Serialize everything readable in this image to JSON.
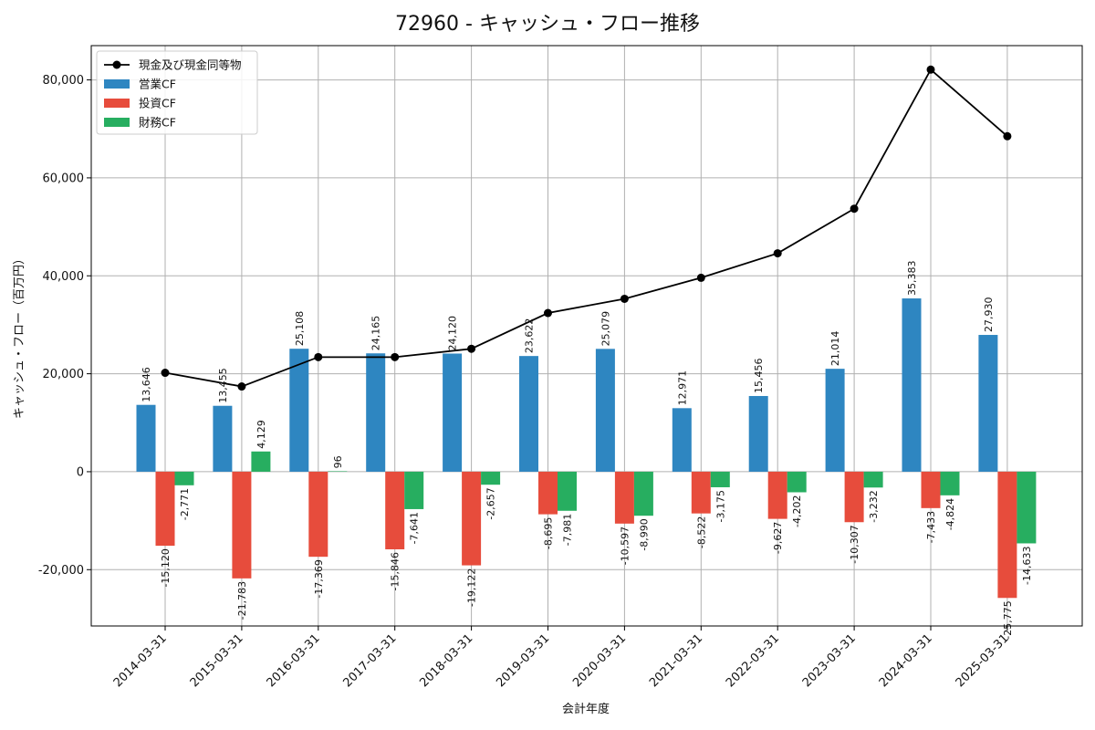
{
  "chart_data": {
    "type": "bar",
    "title": "72960 - キャッシュ・フロー推移",
    "xlabel": "会計年度",
    "ylabel": "キャッシュ・フロー（百万円）",
    "ylim": [
      -31500,
      87000
    ],
    "yticks": [
      -20000,
      0,
      20000,
      40000,
      60000,
      80000
    ],
    "ytick_labels": [
      "-20,000",
      "0",
      "20,000",
      "40,000",
      "60,000",
      "80,000"
    ],
    "grid": true,
    "legend_position": "top-left",
    "categories": [
      "2014-03-31",
      "2015-03-31",
      "2016-03-31",
      "2017-03-31",
      "2018-03-31",
      "2019-03-31",
      "2020-03-31",
      "2021-03-31",
      "2022-03-31",
      "2023-03-31",
      "2024-03-31",
      "2025-03-31"
    ],
    "series": [
      {
        "name": "営業CF",
        "type": "bar",
        "color": "#2e86c1",
        "values": [
          13646,
          13455,
          25108,
          24165,
          24120,
          23622,
          25079,
          12971,
          15456,
          21014,
          35383,
          27930
        ],
        "labels": [
          "13,646",
          "13,455",
          "25,108",
          "24,165",
          "24,120",
          "23,622",
          "25,079",
          "12,971",
          "15,456",
          "21,014",
          "35,383",
          "27,930"
        ]
      },
      {
        "name": "投資CF",
        "type": "bar",
        "color": "#e74c3c",
        "values": [
          -15120,
          -21783,
          -17369,
          -15846,
          -19122,
          -8695,
          -10597,
          -8522,
          -9627,
          -10307,
          -7433,
          -25775
        ],
        "labels": [
          "-15,120",
          "-21,783",
          "-17,369",
          "-15,846",
          "-19,122",
          "-8,695",
          "-10,597",
          "-8,522",
          "-9,627",
          "-10,307",
          "-7,433",
          "-25,775"
        ]
      },
      {
        "name": "財務CF",
        "type": "bar",
        "color": "#27ae60",
        "values": [
          -2771,
          4129,
          96,
          -7641,
          -2657,
          -7981,
          -8990,
          -3175,
          -4202,
          -3232,
          -4824,
          -14633
        ],
        "labels": [
          "-2,771",
          "4,129",
          "96",
          "-7,641",
          "-2,657",
          "-7,981",
          "-8,990",
          "-3,175",
          "-4,202",
          "-3,232",
          "-4,824",
          "-14,633"
        ]
      },
      {
        "name": "現金及び現金同等物",
        "type": "line",
        "color": "#000000",
        "values": [
          20200,
          17400,
          23400,
          23400,
          25100,
          32400,
          35300,
          39600,
          44600,
          53700,
          82100,
          68500
        ]
      }
    ]
  }
}
